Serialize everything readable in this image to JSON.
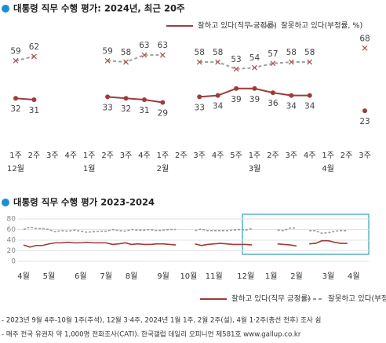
{
  "chart_data": [
    {
      "type": "line",
      "title": "대통령 직무 수행 평가: 2024년, 최근 20주",
      "categories": [
        "1주",
        "2주",
        "3주",
        "4주",
        "1주",
        "2주",
        "3주",
        "4주",
        "1주",
        "2주",
        "3주",
        "4주",
        "5주",
        "1주",
        "2주",
        "3주",
        "4주",
        "1주",
        "2주",
        "3주"
      ],
      "x_groups": [
        "12월",
        null,
        null,
        null,
        "1월",
        null,
        null,
        null,
        "2월",
        null,
        null,
        null,
        null,
        "3월",
        null,
        null,
        null,
        "4월",
        null,
        null
      ],
      "ylim": [
        0,
        80
      ],
      "series": [
        {
          "name": "잘하고 있다(직무 긍정률)",
          "color": "#9e3b3b",
          "style": "solid",
          "marker": "circle",
          "values": [
            32,
            31,
            null,
            null,
            null,
            33,
            32,
            31,
            29,
            null,
            33,
            34,
            39,
            39,
            36,
            34,
            34,
            null,
            null,
            23
          ]
        },
        {
          "name": "잘못하고 있다(부정률, %)",
          "color": "#9a9a9a",
          "style": "dashed",
          "marker": "x",
          "values": [
            59,
            62,
            null,
            null,
            null,
            59,
            58,
            63,
            63,
            null,
            58,
            58,
            53,
            54,
            57,
            58,
            58,
            null,
            null,
            68
          ]
        }
      ]
    },
    {
      "type": "line",
      "title": "대통령 직무 수행 평가 2023-2024",
      "categories": [
        "4월",
        null,
        null,
        null,
        "5월",
        null,
        null,
        null,
        null,
        "6월",
        null,
        null,
        null,
        "7월",
        null,
        null,
        null,
        "8월",
        null,
        null,
        null,
        null,
        "9월",
        null,
        null,
        null,
        "10월",
        null,
        null,
        null,
        "11월",
        null,
        null,
        null,
        null,
        "12월",
        null,
        null,
        null,
        "1월",
        null,
        null,
        null,
        "2월",
        null,
        null,
        null,
        null,
        "3월",
        null,
        null,
        null,
        "4월",
        null,
        null
      ],
      "ylim": [
        0,
        80
      ],
      "yticks": [
        0,
        20,
        40,
        60,
        80
      ],
      "grid": true,
      "series": [
        {
          "name": "잘하고 있다(직무 긍정률)",
          "color": "#9e3b3b",
          "style": "solid",
          "values": [
            31,
            27,
            30,
            30,
            33,
            35,
            35,
            36,
            35,
            35,
            36,
            35,
            35,
            35,
            32,
            33,
            35,
            32,
            33,
            32,
            32,
            33,
            33,
            32,
            31,
            null,
            null,
            33,
            30,
            32,
            33,
            34,
            33,
            32,
            32,
            32,
            31,
            null,
            null,
            null,
            33,
            32,
            31,
            29,
            null,
            33,
            34,
            39,
            39,
            36,
            34,
            34,
            null,
            null,
            23
          ]
        },
        {
          "name": "잘못하고 있다(부정률, %)",
          "color": "#9a9a9a",
          "style": "dashed",
          "values": [
            60,
            65,
            62,
            62,
            60,
            56,
            58,
            57,
            59,
            57,
            55,
            56,
            57,
            57,
            60,
            58,
            57,
            60,
            59,
            59,
            60,
            58,
            59,
            60,
            60,
            null,
            null,
            58,
            61,
            58,
            58,
            58,
            58,
            59,
            60,
            59,
            62,
            null,
            null,
            null,
            59,
            58,
            63,
            63,
            null,
            58,
            58,
            53,
            54,
            57,
            58,
            58,
            null,
            null,
            68
          ]
        }
      ]
    }
  ],
  "notes": [
    "- 2023년 9월 4주-10월 1주(추석), 12월 3·4주, 2024년 1월 1주, 2월 2주(설), 4월 1·2주(총선 전후) 조사 쉼",
    "- 매주 전국 유권자 약 1,000명 전화조사(CATI). 한국갤럽 데일리 오피니언 제581호 www.gallup.co.kr"
  ]
}
